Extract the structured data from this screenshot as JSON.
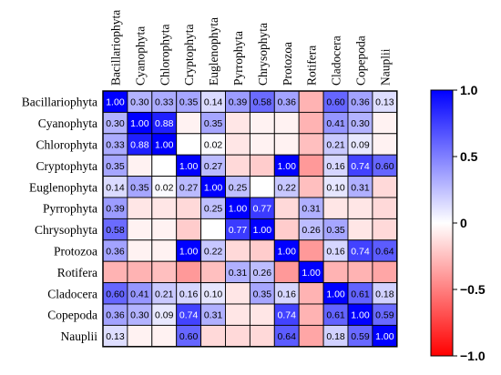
{
  "chart_data": {
    "type": "heatmap",
    "rows": [
      "Bacillariophyta",
      "Cyanophyta",
      "Chlorophyta",
      "Cryptophyta",
      "Euglenophyta",
      "Pyrrophyta",
      "Chrysophyta",
      "Protozoa",
      "Rotifera",
      "Cladocera",
      "Copepoda",
      "Nauplii"
    ],
    "columns": [
      "Bacillariophyta",
      "Cyanophyta",
      "Chlorophyta",
      "Cryptophyta",
      "Euglenophyta",
      "Pyrrophyta",
      "Chrysophyta",
      "Protozoa",
      "Rotifera",
      "Cladocera",
      "Copepoda",
      "Nauplii"
    ],
    "values": [
      [
        1.0,
        0.3,
        0.33,
        0.35,
        0.14,
        0.39,
        0.58,
        0.36,
        -0.3,
        0.6,
        0.36,
        0.13
      ],
      [
        0.3,
        1.0,
        0.88,
        -0.05,
        0.35,
        -0.1,
        -0.05,
        -0.05,
        -0.3,
        0.41,
        0.3,
        -0.05
      ],
      [
        0.33,
        0.88,
        1.0,
        0.0,
        0.02,
        -0.1,
        -0.05,
        -0.05,
        -0.25,
        0.21,
        0.09,
        -0.05
      ],
      [
        0.35,
        -0.05,
        0.0,
        1.0,
        0.27,
        -0.15,
        -0.2,
        1.0,
        -0.4,
        0.16,
        0.74,
        0.6
      ],
      [
        0.14,
        0.35,
        0.02,
        0.27,
        1.0,
        0.25,
        0.0,
        0.22,
        -0.25,
        0.1,
        0.31,
        -0.15
      ],
      [
        0.39,
        -0.1,
        -0.1,
        -0.15,
        0.25,
        1.0,
        0.77,
        -0.15,
        0.31,
        -0.1,
        -0.1,
        -0.15
      ],
      [
        0.58,
        -0.05,
        -0.05,
        -0.2,
        0.0,
        0.77,
        1.0,
        -0.2,
        0.26,
        0.35,
        -0.1,
        -0.15
      ],
      [
        0.36,
        -0.05,
        -0.05,
        1.0,
        0.22,
        -0.15,
        -0.2,
        1.0,
        -0.4,
        0.16,
        0.74,
        0.64
      ],
      [
        -0.3,
        -0.3,
        -0.25,
        -0.4,
        -0.25,
        0.31,
        0.26,
        -0.4,
        1.0,
        -0.3,
        -0.3,
        -0.35
      ],
      [
        0.6,
        0.41,
        0.21,
        0.16,
        0.1,
        -0.1,
        0.35,
        0.16,
        -0.3,
        1.0,
        0.61,
        0.18
      ],
      [
        0.36,
        0.3,
        0.09,
        0.74,
        0.31,
        -0.1,
        -0.1,
        0.74,
        -0.3,
        0.61,
        1.0,
        0.59
      ],
      [
        0.13,
        -0.05,
        -0.05,
        0.6,
        -0.15,
        -0.15,
        -0.15,
        0.64,
        -0.35,
        0.18,
        0.59,
        1.0
      ]
    ],
    "labels": [
      [
        "1.00",
        "0.30",
        "0.33",
        "0.35",
        "0.14",
        "0.39",
        "0.58",
        "0.36",
        "",
        "0.60",
        "0.36",
        "0.13"
      ],
      [
        "0.30",
        "1.00",
        "0.88",
        "",
        "0.35",
        "",
        "",
        "",
        "",
        "0.41",
        "0.30",
        ""
      ],
      [
        "0.33",
        "0.88",
        "1.00",
        "",
        "0.02",
        "",
        "",
        "",
        "",
        "0.21",
        "0.09",
        ""
      ],
      [
        "0.35",
        "",
        "",
        "1.00",
        "0.27",
        "",
        "",
        "1.00",
        "",
        "0.16",
        "0.74",
        "0.60"
      ],
      [
        "0.14",
        "0.35",
        "0.02",
        "0.27",
        "1.00",
        "0.25",
        "",
        "0.22",
        "",
        "0.10",
        "0.31",
        ""
      ],
      [
        "0.39",
        "",
        "",
        "",
        "0.25",
        "1.00",
        "0.77",
        "",
        "0.31",
        "",
        "",
        ""
      ],
      [
        "0.58",
        "",
        "",
        "",
        "",
        "0.77",
        "1.00",
        "",
        "0.26",
        "0.35",
        "",
        ""
      ],
      [
        "0.36",
        "",
        "",
        "1.00",
        "0.22",
        "",
        "",
        "1.00",
        "",
        "0.16",
        "0.74",
        "0.64"
      ],
      [
        "",
        "",
        "",
        "",
        "",
        "0.31",
        "0.26",
        "",
        "1.00",
        "",
        "",
        ""
      ],
      [
        "0.60",
        "0.41",
        "0.21",
        "0.16",
        "0.10",
        "",
        "0.35",
        "0.16",
        "",
        "1.00",
        "0.61",
        "0.18"
      ],
      [
        "0.36",
        "0.30",
        "0.09",
        "0.74",
        "0.31",
        "",
        "",
        "0.74",
        "",
        "0.61",
        "1.00",
        "0.59"
      ],
      [
        "0.13",
        "",
        "",
        "0.60",
        "",
        "",
        "",
        "0.64",
        "",
        "0.18",
        "0.59",
        "1.00"
      ]
    ],
    "color_scale": {
      "min": -1.0,
      "max": 1.0,
      "negative_color": "#ff0000",
      "zero_color": "#ffffff",
      "positive_color": "#0000ff"
    },
    "colorbar_ticks": [
      "1.0",
      "0.5",
      "0",
      "−0.5",
      "−1.0"
    ],
    "colorbar_tick_values": [
      1.0,
      0.5,
      0.0,
      -0.5,
      -1.0
    ],
    "legend_position": "right",
    "grid": true
  }
}
